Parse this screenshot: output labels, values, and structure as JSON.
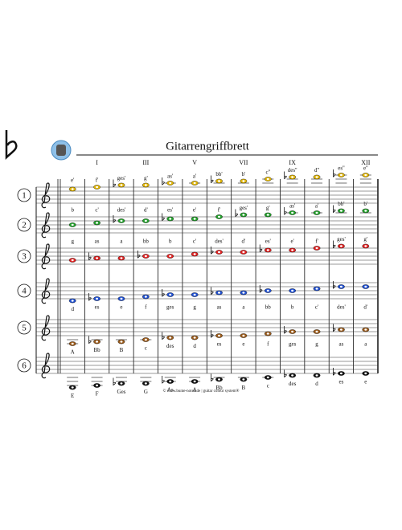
{
  "header": {
    "title": "Gitarrengriffbrett"
  },
  "fret_labels": [
    "I",
    null,
    "III",
    null,
    "V",
    null,
    "VII",
    null,
    "IX",
    null,
    null,
    "XII"
  ],
  "strings": [
    {
      "number": "1",
      "color": "#e0b400",
      "notes": [
        "e'",
        "f'",
        "ges'",
        "g'",
        "as'",
        "a'",
        "bb'",
        "b'",
        "c''",
        "des''",
        "d''",
        "es''",
        "e''"
      ]
    },
    {
      "number": "2",
      "color": "#22a02a",
      "notes": [
        "b",
        "c'",
        "des'",
        "d'",
        "es'",
        "e'",
        "f'",
        "ges'",
        "g'",
        "as'",
        "a'",
        "bb'",
        "b'"
      ]
    },
    {
      "number": "3",
      "color": "#e02020",
      "notes": [
        "g",
        "as",
        "a",
        "bb",
        "b",
        "c'",
        "des'",
        "d'",
        "es'",
        "e'",
        "f'",
        "ges'",
        "g'"
      ]
    },
    {
      "number": "4",
      "color": "#1f4fd0",
      "notes": [
        "d",
        "es",
        "e",
        "f",
        "ges",
        "g",
        "as",
        "a",
        "bb",
        "b",
        "c'",
        "des'",
        "d'"
      ]
    },
    {
      "number": "5",
      "color": "#9a5a1a",
      "notes": [
        "A",
        "Bb",
        "B",
        "c",
        "des",
        "d",
        "es",
        "e",
        "f",
        "ges",
        "g",
        "as",
        "a"
      ]
    },
    {
      "number": "6",
      "color": "#111111",
      "notes": [
        "E",
        "F",
        "Ges",
        "G",
        "As",
        "A",
        "Bb",
        "B",
        "c",
        "des",
        "d",
        "es",
        "e"
      ]
    }
  ],
  "footer": "© www.bunte-noten.de | guitar colour system®"
}
